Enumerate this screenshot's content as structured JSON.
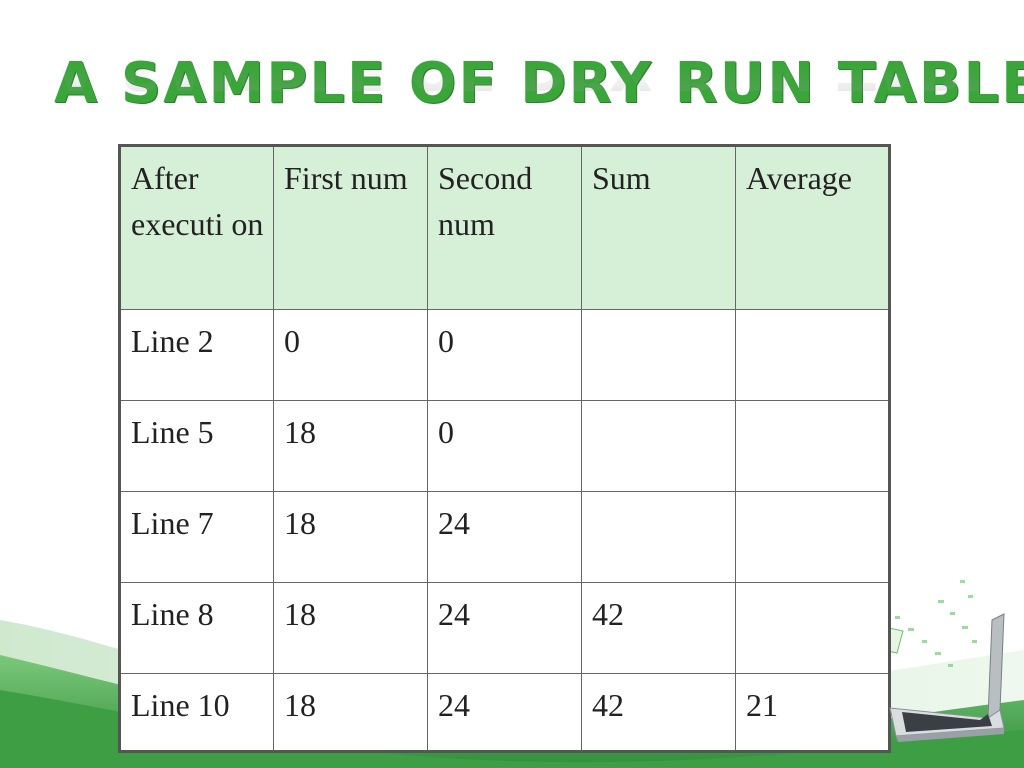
{
  "slide": {
    "title": "A sample of dry run table",
    "accent_color": "#3aa63a",
    "header_fill": "#d6efd7"
  },
  "table": {
    "headers": [
      "After executi on",
      "First num",
      "Second num",
      "Sum",
      "Average"
    ],
    "rows": [
      [
        "Line 2",
        "0",
        "0",
        "",
        ""
      ],
      [
        "Line 5",
        "18",
        "0",
        "",
        ""
      ],
      [
        "Line 7",
        "18",
        "24",
        "",
        ""
      ],
      [
        "Line 8",
        "18",
        "24",
        "42",
        ""
      ],
      [
        "Line 10",
        "18",
        "24",
        "42",
        "21"
      ]
    ]
  },
  "decor": {
    "background": "green-swoosh",
    "corner_image": "laptop-icon"
  }
}
